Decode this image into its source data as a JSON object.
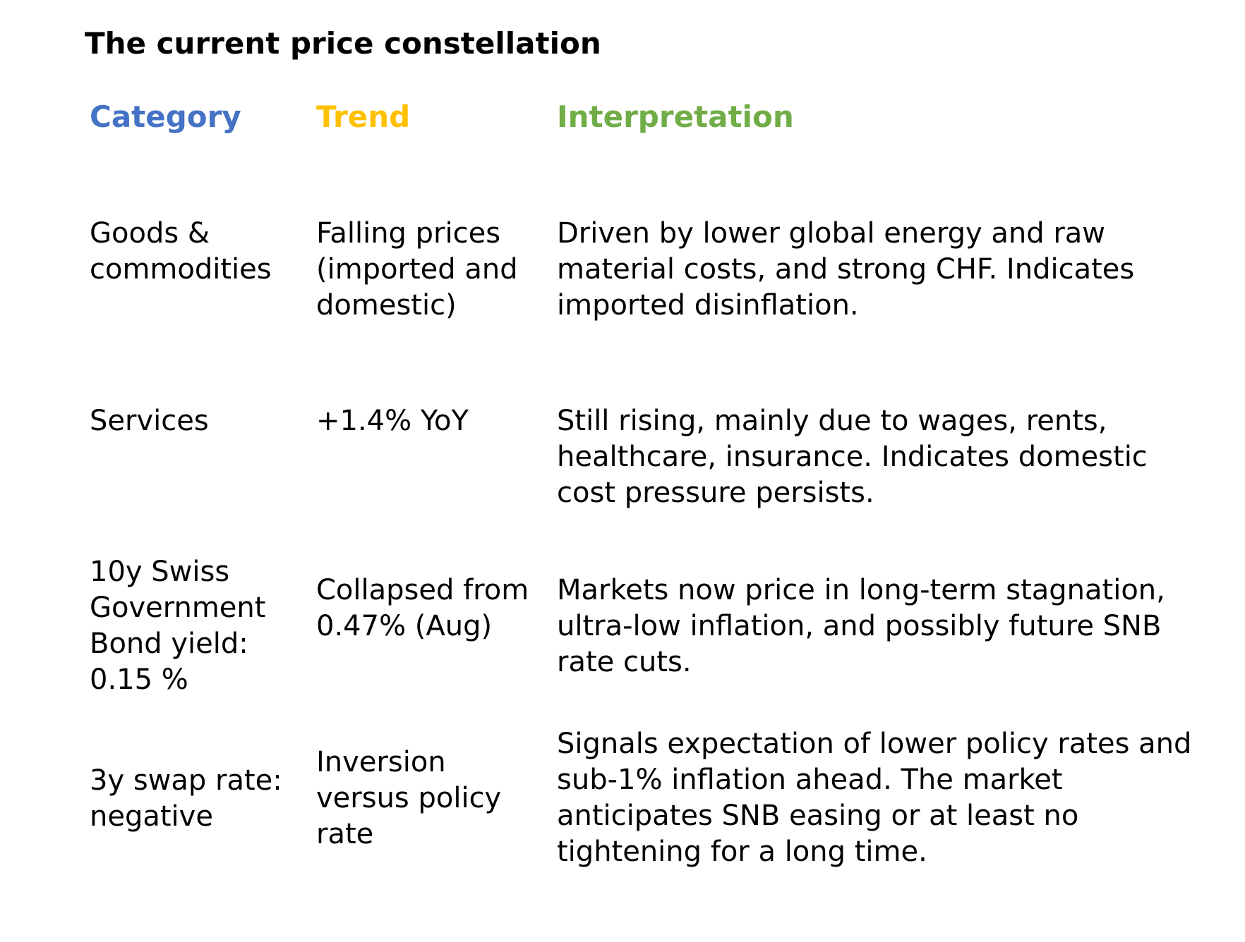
{
  "title": "The current price constellation",
  "colors": {
    "category": "#4472C4",
    "trend": "#FFC000",
    "interpretation": "#70AD47"
  },
  "headers": {
    "category": "Category",
    "trend": "Trend",
    "interpretation": "Interpretation"
  },
  "rows": [
    {
      "category": "Goods & commodities",
      "trend": "Falling prices (imported and domestic)",
      "interpretation": "Driven by lower global energy and raw material costs, and strong CHF. Indicates imported disinflation."
    },
    {
      "category": "Services",
      "trend": "+1.4% YoY",
      "interpretation": "Still rising, mainly due to wages, rents, healthcare, insurance. Indicates domestic cost pressure persists."
    },
    {
      "category": "10y Swiss Government Bond yield: 0.15 %",
      "trend": "Collapsed from 0.47% (Aug)",
      "interpretation": "Markets now price in long-term stagnation, ultra-low inflation, and possibly future SNB rate cuts."
    },
    {
      "category": "3y swap rate: negative",
      "trend": "Inversion versus policy rate",
      "interpretation": "Signals expectation of lower policy rates and sub-1% inflation ahead. The market anticipates SNB easing or at least no tightening for a long time."
    }
  ]
}
